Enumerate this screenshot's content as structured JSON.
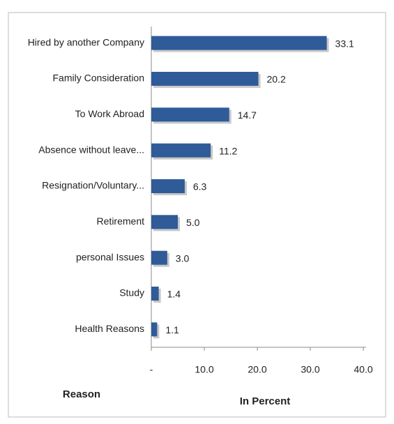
{
  "chart_data": {
    "type": "bar",
    "orientation": "horizontal",
    "categories": [
      "Hired by another Company",
      "Family Consideration",
      "To Work Abroad",
      "Absence without leave...",
      "Resignation/Voluntary...",
      "Retirement",
      "personal Issues",
      "Study",
      "Health Reasons"
    ],
    "values": [
      33.1,
      20.2,
      14.7,
      11.2,
      6.3,
      5.0,
      3.0,
      1.4,
      1.1
    ],
    "value_labels": [
      "33.1",
      "20.2",
      "14.7",
      "11.2",
      "6.3",
      "5.0",
      "3.0",
      "1.4",
      "1.1"
    ],
    "color": "#2f5b98",
    "xlim": [
      0,
      40
    ],
    "xticks": [
      {
        "value": 0,
        "label": "-"
      },
      {
        "value": 10,
        "label": "10.0"
      },
      {
        "value": 20,
        "label": "20.0"
      },
      {
        "value": 30,
        "label": "30.0"
      },
      {
        "value": 40,
        "label": "40.0"
      }
    ],
    "y_label": "Reason",
    "x_label": "In Percent"
  }
}
